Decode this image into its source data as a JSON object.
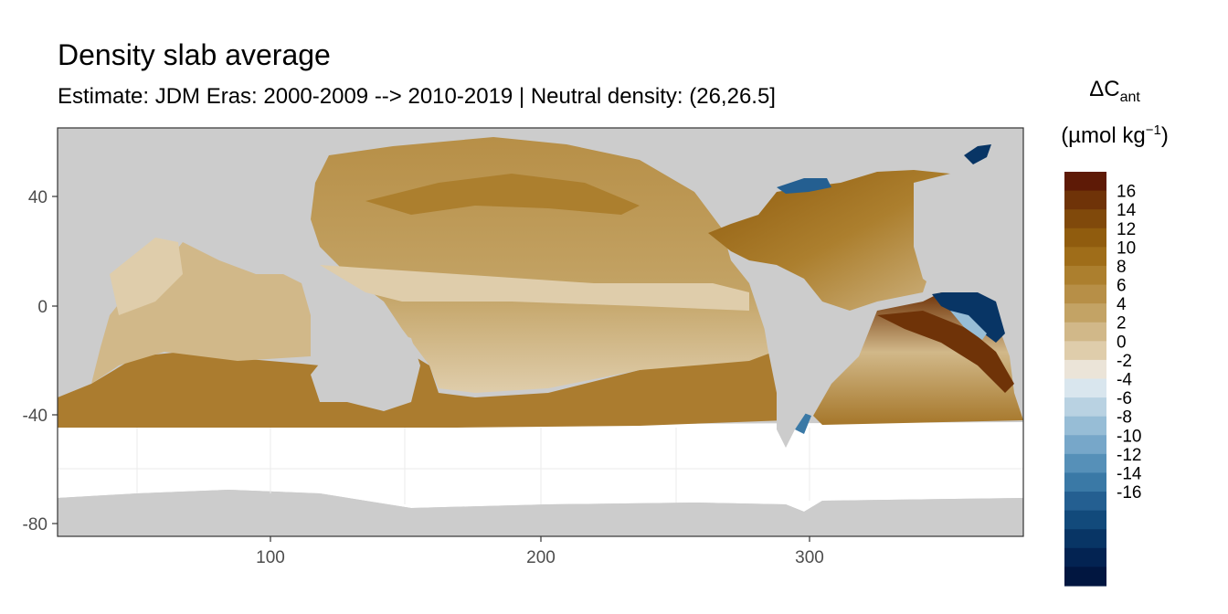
{
  "title": "Density slab average",
  "subtitle": "Estimate: JDM Eras: 2000-2009 --> 2010-2019 | Neutral density: (26,26.5]",
  "legend": {
    "title_main": "ΔC",
    "title_sub": "ant",
    "unit_main": "(µmol kg",
    "unit_sup": "−1",
    "unit_close": ")",
    "labels": [
      "16",
      "14",
      "12",
      "10",
      "8",
      "6",
      "4",
      "2",
      "0",
      "-2",
      "-4",
      "-6",
      "-8",
      "-10",
      "-12",
      "-14",
      "-16"
    ],
    "colors": [
      "#5e1a06",
      "#6f3308",
      "#80490b",
      "#905c0e",
      "#9f6d19",
      "#ac7f2e",
      "#b78f47",
      "#c3a365",
      "#d1b889",
      "#dfcdab",
      "#ebe4d8",
      "#d9e6ee",
      "#b9d2e2",
      "#97bdd6",
      "#77a7c9",
      "#5690b8",
      "#3a79a6",
      "#245f91",
      "#124a7b",
      "#083565",
      "#032352",
      "#011640"
    ]
  },
  "axes": {
    "x_ticks": [
      "100",
      "200",
      "300"
    ],
    "y_ticks": [
      "40",
      "0",
      "-40",
      "-80"
    ]
  },
  "colors": {
    "land": "#cccccc",
    "panel_border": "#333333",
    "grid": "#ebebeb"
  }
}
